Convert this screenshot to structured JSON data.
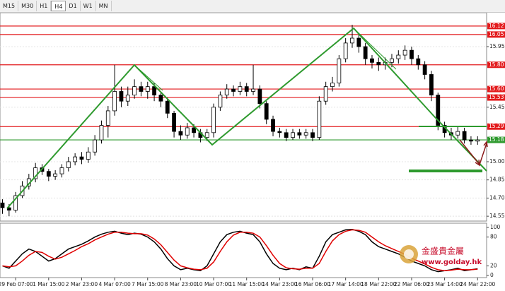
{
  "toolbar": {
    "buttons": [
      "M15",
      "M30",
      "H1",
      "H4",
      "D1",
      "W1",
      "MN"
    ],
    "active": "H4"
  },
  "watermark": {
    "name": "金盛貴金屬",
    "url": "www.golday.hk"
  },
  "chart_data": [
    {
      "type": "candlestick",
      "categories": [
        null,
        null,
        "29 Feb 07:00",
        null,
        null,
        null,
        null,
        "1 Mar 15:00",
        null,
        null,
        null,
        null,
        "2 Mar 23:00",
        null,
        null,
        null,
        null,
        "4 Mar 07:00",
        null,
        null,
        null,
        null,
        "7 Mar 15:00",
        null,
        null,
        null,
        null,
        "8 Mar 23:00",
        null,
        null,
        null,
        null,
        "10 Mar 07:00",
        null,
        null,
        null,
        null,
        "11 Mar 15:00",
        null,
        null,
        null,
        null,
        "14 Mar 23:00",
        null,
        null,
        null,
        null,
        "16 Mar 06:00",
        null,
        null,
        null,
        null,
        "17 Mar 14:00",
        null,
        null,
        null,
        null,
        "18 Mar 22:00",
        null,
        null,
        null,
        null,
        "22 Mar 06:00",
        null,
        null,
        null,
        null,
        "23 Mar 14:00",
        null,
        null,
        null,
        null,
        "24 Mar 22:00"
      ],
      "open": [
        14.66,
        14.62,
        14.6,
        14.72,
        14.8,
        14.86,
        14.95,
        14.92,
        14.88,
        14.9,
        14.95,
        15.0,
        15.04,
        15.02,
        15.08,
        15.18,
        15.3,
        15.42,
        15.58,
        15.5,
        15.55,
        15.62,
        15.58,
        15.62,
        15.55,
        15.5,
        15.4,
        15.25,
        15.22,
        15.28,
        15.24,
        15.2,
        15.24,
        15.45,
        15.55,
        15.6,
        15.58,
        15.62,
        15.58,
        15.6,
        15.48,
        15.35,
        15.25,
        15.24,
        15.2,
        15.24,
        15.22,
        15.24,
        15.2,
        15.5,
        15.62,
        15.65,
        15.85,
        15.98,
        16.02,
        15.95,
        15.85,
        15.82,
        15.8,
        15.82,
        15.85,
        15.88,
        15.92,
        15.85,
        15.8,
        15.72,
        15.55,
        15.3,
        15.24,
        15.22,
        15.25,
        15.18,
        15.17
      ],
      "high": [
        14.69,
        14.65,
        14.75,
        14.84,
        14.9,
        14.99,
        14.98,
        14.94,
        14.93,
        14.98,
        15.04,
        15.07,
        15.08,
        15.12,
        15.22,
        15.34,
        15.46,
        15.8,
        15.62,
        15.62,
        15.68,
        15.66,
        15.66,
        15.65,
        15.58,
        15.53,
        15.42,
        15.3,
        15.32,
        15.31,
        15.27,
        15.27,
        15.48,
        15.58,
        15.64,
        15.63,
        15.66,
        15.65,
        15.8,
        15.63,
        15.5,
        15.38,
        15.28,
        15.27,
        15.27,
        15.27,
        15.27,
        15.27,
        15.54,
        15.66,
        15.7,
        15.88,
        16.02,
        16.13,
        16.06,
        15.98,
        15.88,
        15.86,
        15.86,
        15.89,
        15.92,
        15.96,
        15.95,
        15.88,
        15.83,
        15.75,
        15.57,
        15.33,
        15.28,
        15.29,
        15.28,
        15.21,
        15.21
      ],
      "low": [
        14.57,
        14.55,
        14.58,
        14.7,
        14.77,
        14.83,
        14.89,
        14.84,
        14.85,
        14.87,
        14.92,
        14.97,
        14.98,
        14.99,
        15.05,
        15.15,
        15.2,
        15.38,
        15.45,
        15.46,
        15.52,
        15.54,
        15.52,
        15.5,
        15.45,
        15.36,
        15.2,
        15.18,
        15.19,
        15.2,
        15.16,
        15.17,
        15.2,
        15.42,
        15.52,
        15.54,
        15.55,
        15.54,
        15.55,
        15.44,
        15.31,
        15.21,
        15.2,
        15.17,
        15.18,
        15.19,
        15.19,
        15.17,
        15.18,
        15.47,
        15.58,
        15.62,
        15.82,
        15.94,
        15.9,
        15.8,
        15.77,
        15.75,
        15.76,
        15.78,
        15.81,
        15.84,
        15.8,
        15.76,
        15.68,
        15.5,
        15.26,
        15.2,
        15.18,
        15.19,
        15.15,
        15.14,
        15.14
      ],
      "close": [
        14.62,
        14.6,
        14.72,
        14.8,
        14.86,
        14.95,
        14.92,
        14.88,
        14.9,
        14.95,
        15.0,
        15.04,
        15.02,
        15.08,
        15.18,
        15.3,
        15.42,
        15.58,
        15.5,
        15.55,
        15.62,
        15.58,
        15.62,
        15.55,
        15.5,
        15.4,
        15.25,
        15.22,
        15.28,
        15.24,
        15.2,
        15.24,
        15.45,
        15.55,
        15.6,
        15.58,
        15.62,
        15.58,
        15.6,
        15.48,
        15.35,
        15.25,
        15.24,
        15.2,
        15.24,
        15.22,
        15.24,
        15.2,
        15.5,
        15.62,
        15.65,
        15.85,
        15.98,
        16.02,
        15.95,
        15.85,
        15.82,
        15.8,
        15.82,
        15.85,
        15.88,
        15.92,
        15.85,
        15.8,
        15.72,
        15.55,
        15.3,
        15.24,
        15.22,
        15.25,
        15.18,
        15.17,
        15.18
      ],
      "ylim": [
        14.51,
        16.23
      ],
      "yticks": [
        {
          "value": 14.55,
          "label": "14.55"
        },
        {
          "value": 14.7,
          "label": "14.70"
        },
        {
          "value": 14.85,
          "label": "14.85"
        },
        {
          "value": 15.0,
          "label": "15.00"
        },
        {
          "value": 15.45,
          "label": "15.45"
        },
        {
          "value": 15.95,
          "label": "15.95"
        }
      ],
      "levels": [
        {
          "value": 16.12,
          "label": "16.12",
          "color": "#e31a1c"
        },
        {
          "value": 16.05,
          "label": "16.05",
          "color": "#e31a1c"
        },
        {
          "value": 15.8,
          "label": "15.80",
          "color": "#e31a1c"
        },
        {
          "value": 15.6,
          "label": "15.60",
          "color": "#e31a1c"
        },
        {
          "value": 15.53,
          "label": "15.53",
          "color": "#e31a1c"
        },
        {
          "value": 15.29,
          "label": "15.29",
          "color": "#e31a1c"
        },
        {
          "value": 15.18,
          "label": "15.18",
          "color": "#2e9a2e"
        }
      ],
      "grid": true
    },
    {
      "type": "line",
      "series": [
        {
          "name": "Main",
          "color": "#000000",
          "values": [
            20,
            15,
            30,
            45,
            55,
            50,
            40,
            30,
            35,
            45,
            55,
            60,
            65,
            72,
            80,
            86,
            90,
            92,
            88,
            85,
            88,
            86,
            80,
            70,
            55,
            35,
            20,
            12,
            15,
            12,
            10,
            20,
            45,
            70,
            85,
            90,
            92,
            88,
            85,
            70,
            45,
            25,
            15,
            12,
            15,
            12,
            18,
            15,
            40,
            70,
            85,
            90,
            95,
            96,
            92,
            85,
            70,
            60,
            55,
            50,
            45,
            38,
            30,
            25,
            20,
            12,
            8,
            10,
            12,
            15,
            10,
            12,
            14
          ]
        },
        {
          "name": "Signal",
          "color": "#e00000",
          "values": [
            20,
            18,
            20,
            30,
            42,
            50,
            48,
            40,
            34,
            38,
            45,
            52,
            60,
            66,
            74,
            80,
            86,
            90,
            90,
            88,
            87,
            87,
            84,
            76,
            64,
            48,
            32,
            20,
            16,
            13,
            12,
            15,
            28,
            50,
            70,
            84,
            90,
            90,
            88,
            80,
            62,
            42,
            25,
            16,
            14,
            13,
            15,
            15,
            25,
            50,
            72,
            85,
            92,
            95,
            94,
            90,
            80,
            70,
            62,
            56,
            50,
            44,
            36,
            30,
            24,
            17,
            12,
            10,
            11,
            13,
            12,
            12,
            13
          ]
        }
      ],
      "ylim": [
        0,
        100
      ],
      "yticks": [
        0,
        20,
        80,
        100
      ]
    }
  ]
}
